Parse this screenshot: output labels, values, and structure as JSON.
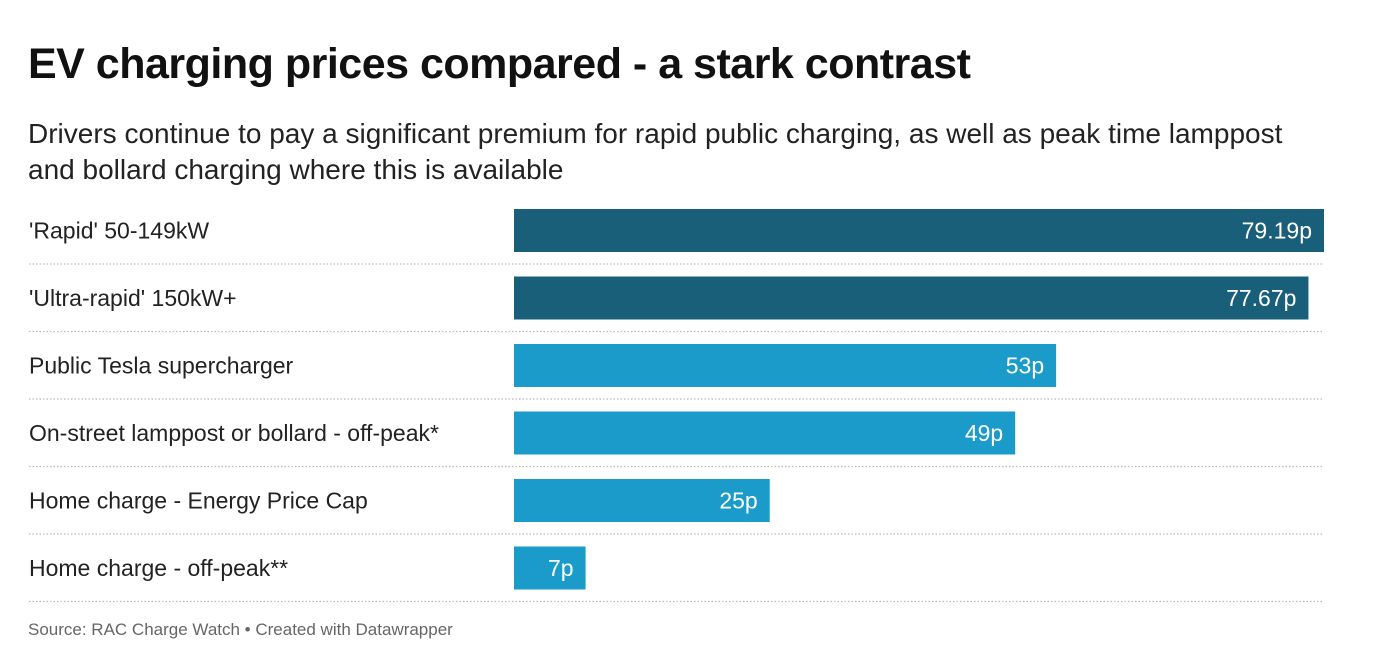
{
  "chart_data": {
    "type": "bar",
    "orientation": "horizontal",
    "title": "EV charging prices compared - a stark contrast",
    "subtitle": "Drivers continue to pay a significant premium for rapid public charging, as well as peak time lamppost and bollard charging where this is available",
    "categories": [
      "'Rapid' 50-149kW",
      "'Ultra-rapid' 150kW+",
      "Public Tesla supercharger",
      "On-street lamppost or bollard - off-peak*",
      "Home charge - Energy Price Cap",
      "Home charge - off-peak**"
    ],
    "values": [
      79.19,
      77.67,
      53,
      49,
      25,
      7
    ],
    "value_labels": [
      "79.19p",
      "77.67p",
      "53p",
      "49p",
      "25p",
      "7p"
    ],
    "bar_colors": [
      "#1a5f7a",
      "#1a5f7a",
      "#1a9bc9",
      "#1a9bc9",
      "#1a9bc9",
      "#1a9bc9"
    ],
    "xlabel": "",
    "ylabel": "",
    "xlim": [
      0,
      79.19
    ],
    "grid": false,
    "source": "Source: RAC Charge Watch • Created with Datawrapper"
  }
}
